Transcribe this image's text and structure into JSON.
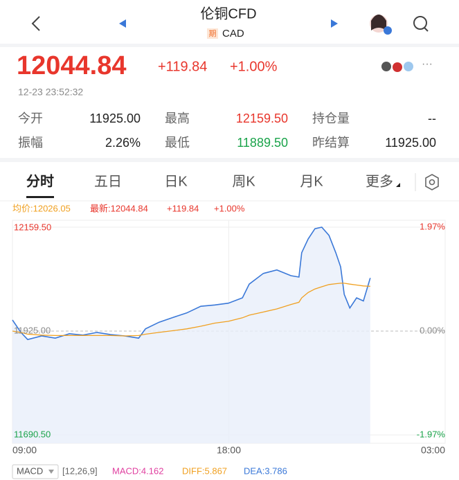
{
  "header": {
    "title": "伦铜CFD",
    "badge": "期",
    "subtitle": "CAD"
  },
  "quote": {
    "price": "12044.84",
    "change": "+119.84",
    "change_pct": "+1.00%",
    "time": "12-23 23:52:32"
  },
  "stats": [
    [
      "今开",
      "11925.00",
      "最高",
      "12159.50",
      "持仓量",
      "--"
    ],
    [
      "振幅",
      "2.26%",
      "最低",
      "11889.50",
      "昨结算",
      "11925.00"
    ]
  ],
  "tabs": [
    "分时",
    "五日",
    "日K",
    "周K",
    "月K",
    "更多"
  ],
  "chart_legend": {
    "average": "均价:12026.05",
    "latest": "最新:12044.84",
    "change": "+119.84",
    "change_pct": "+1.00%"
  },
  "indicator": {
    "name": "MACD",
    "params": "[12,26,9]",
    "macd": "MACD:4.162",
    "diff": "DIFF:5.867",
    "dea": "DEA:3.786"
  },
  "chart_data": {
    "type": "line",
    "x": [
      0,
      21,
      38,
      73,
      107,
      142,
      176,
      211,
      245,
      280,
      315,
      332,
      366,
      401,
      435,
      470,
      505,
      539,
      574,
      591,
      626,
      660,
      695,
      715,
      722,
      738,
      755,
      772,
      790,
      807,
      819,
      828,
      842,
      859,
      876,
      893
    ],
    "series": [
      {
        "name": "最新",
        "color": "#3a78d8",
        "fill": "#e8effa",
        "values": [
          11950,
          11922,
          11906,
          11914,
          11909,
          11919,
          11916,
          11922,
          11917,
          11914,
          11909,
          11930,
          11945,
          11956,
          11966,
          11981,
          11984,
          11988,
          12000,
          12031,
          12055,
          12063,
          12050,
          12047,
          12102,
          12133,
          12156,
          12159.5,
          12141,
          12102,
          12070,
          12008,
          11977,
          12000,
          11993,
          12044.84
        ]
      },
      {
        "name": "均价",
        "color": "#f0a020",
        "values": [
          11925,
          11922,
          11918,
          11916,
          11915,
          11915,
          11915,
          11915,
          11915,
          11914,
          11915,
          11918,
          11922,
          11926,
          11930,
          11936,
          11943,
          11947,
          11955,
          11961,
          11968,
          11975,
          11985,
          11990,
          12000,
          12012,
          12020,
          12025,
          12030,
          12032,
          12033,
          12033,
          12031,
          12029,
          12027,
          12026.05
        ]
      }
    ],
    "xlim": [
      0,
      1080
    ],
    "xticks": [
      {
        "value": 0,
        "label": "09:00"
      },
      {
        "value": 540,
        "label": "18:00"
      },
      {
        "value": 1080,
        "label": "03:00"
      }
    ],
    "ylim": [
      11690.5,
      12159.5
    ],
    "yticks": [
      {
        "value": 11690.5,
        "label": "11690.50"
      },
      {
        "value": 11925,
        "label": "11925.00"
      },
      {
        "value": 12159.5,
        "label": "12159.50"
      }
    ],
    "y2lim": [
      -1.97,
      1.97
    ],
    "y2ticks": [
      {
        "value": -1.97,
        "label": "-1.97%"
      },
      {
        "value": 0,
        "label": "0.00%"
      },
      {
        "value": 1.97,
        "label": "1.97%"
      }
    ],
    "reference": 11925,
    "grid": true
  }
}
